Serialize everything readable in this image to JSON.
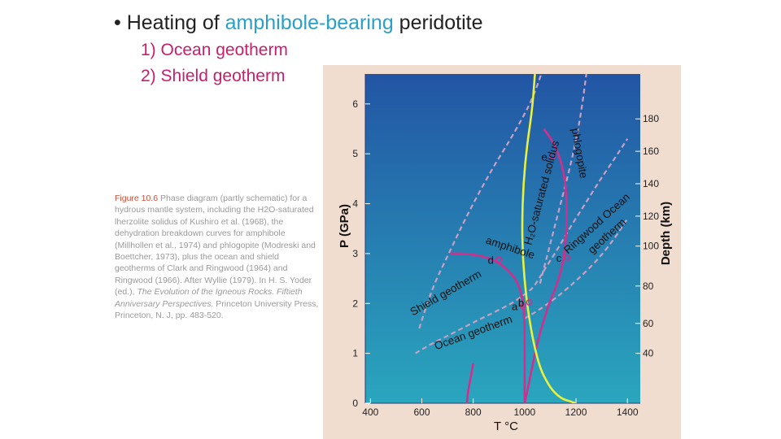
{
  "slide": {
    "bullet": "•",
    "title_pre": "Heating of ",
    "title_highlight": "amphibole-bearing",
    "title_post": " peridotite",
    "item1": "1) Ocean geotherm",
    "item2": "2) Shield geotherm"
  },
  "caption": {
    "fig_label": "Figure 10.6",
    "part1": " Phase diagram (partly schematic) for a hydrous mantle system, including the H2O-saturated lherzolite solidus of Kushiro et al. (1968), the dehydration breakdown curves for amphibole (Millhollen et al., 1974) and phlogopite (Modreski and Boettcher, 1973), plus the ocean and shield geotherms of Clark and Ringwood (1964) and Ringwood (1966). After Wyllie (1979). In H. S. Yoder (ed.), ",
    "italic": "The Evolution of the Igneous Rocks. Fiftieth Anniversary Perspectives.",
    "part2": " Princeton University Press, Princeton, N. J, pp. 483-520."
  },
  "colors": {
    "panel_bg": "#f1ddd0",
    "plot_top": "#2255a4",
    "plot_bottom": "#2aa6be",
    "solidus": "#e8f040",
    "dehydration": "#d0308c",
    "geotherm": "#c8a0c4",
    "point": "#d0308c"
  },
  "chart_data": {
    "type": "line",
    "xlabel": "T °C",
    "ylabel": "P (GPa)",
    "y2label": "Depth (km)",
    "xlim": [
      380,
      1450
    ],
    "ylim": [
      0,
      6.6
    ],
    "x_ticks": [
      400,
      600,
      800,
      1000,
      1200,
      1400
    ],
    "y_ticks": [
      0,
      1,
      2,
      3,
      4,
      5,
      6
    ],
    "depth_ticks": [
      {
        "label": "40",
        "p": 1.0
      },
      {
        "label": "60",
        "p": 1.6
      },
      {
        "label": "80",
        "p": 2.35
      },
      {
        "label": "100",
        "p": 3.15
      },
      {
        "label": "120",
        "p": 3.75
      },
      {
        "label": "140",
        "p": 4.4
      },
      {
        "label": "160",
        "p": 5.05
      },
      {
        "label": "180",
        "p": 5.7
      }
    ],
    "series": [
      {
        "name": "H2O-saturated solidus",
        "style": "solidus",
        "x": [
          1040,
          1030,
          1010,
          995,
          990,
          993,
          1005,
          1015,
          1035,
          1060,
          1090,
          1110,
          1130,
          1150,
          1175,
          1200
        ],
        "y": [
          6.6,
          5.9,
          5.2,
          4.4,
          3.6,
          2.9,
          2.2,
          1.8,
          1.2,
          0.7,
          0.4,
          0.25,
          0.15,
          0.08,
          0.04,
          0.0
        ]
      },
      {
        "name": "phlogopite",
        "style": "dehydration",
        "x": [
          1075,
          1110,
          1140,
          1160,
          1165,
          1160,
          1145,
          1120,
          1095,
          1080,
          1065,
          1052,
          1040,
          1025,
          1000
        ],
        "y": [
          5.5,
          5.25,
          4.9,
          4.4,
          3.8,
          3.2,
          2.7,
          2.3,
          2.0,
          1.75,
          1.5,
          1.25,
          1.0,
          0.6,
          0.0
        ]
      },
      {
        "name": "amphibole",
        "style": "dehydration",
        "x": [
          710,
          780,
          860,
          920,
          965,
          985,
          995,
          998,
          1000,
          1000,
          1000,
          1000
        ],
        "y": [
          3.0,
          3.0,
          2.92,
          2.75,
          2.5,
          2.25,
          2.0,
          1.75,
          1.5,
          1.0,
          0.5,
          0.0
        ]
      },
      {
        "name": "amphibole lower branch",
        "style": "dehydration",
        "x": [
          800,
          790,
          780,
          775
        ],
        "y": [
          0.8,
          0.5,
          0.25,
          0.0
        ]
      },
      {
        "name": "Shield geotherm",
        "style": "geotherm",
        "x": [
          590,
          640,
          700,
          760,
          820,
          880,
          940,
          990,
          1030,
          1065
        ],
        "y": [
          1.5,
          2.3,
          2.95,
          3.6,
          4.2,
          4.75,
          5.25,
          5.7,
          6.1,
          6.6
        ]
      },
      {
        "name": "Ocean geotherm",
        "style": "geotherm",
        "x": [
          575,
          640,
          720,
          800,
          880,
          950,
          1005,
          1035,
          1080,
          1130,
          1180,
          1230,
          1290,
          1350,
          1400
        ],
        "y": [
          1.0,
          1.2,
          1.4,
          1.62,
          1.82,
          2.0,
          2.2,
          2.32,
          2.7,
          3.1,
          3.55,
          3.95,
          4.45,
          4.9,
          5.3
        ]
      },
      {
        "name": "Ocean geotherm upper",
        "style": "geotherm",
        "x": [
          1000,
          1050,
          1120,
          1200,
          1280,
          1350,
          1400
        ],
        "y": [
          1.7,
          1.85,
          2.1,
          2.45,
          2.85,
          3.3,
          3.7
        ]
      },
      {
        "name": "Ringwood Ocean geotherm",
        "style": "geotherm",
        "x": [
          1060,
          1090,
          1120,
          1150,
          1180,
          1205,
          1225,
          1240
        ],
        "y": [
          2.4,
          3.0,
          3.6,
          4.2,
          4.8,
          5.4,
          6.0,
          6.6
        ]
      }
    ],
    "points": [
      {
        "label": "a",
        "x": 993,
        "y": 1.95
      },
      {
        "label": "b",
        "x": 1018,
        "y": 2.02
      },
      {
        "label": "c",
        "x": 1165,
        "y": 2.92
      },
      {
        "label": "d",
        "x": 900,
        "y": 2.88
      },
      {
        "label": "e",
        "x": 1108,
        "y": 4.95
      }
    ],
    "annotations": [
      {
        "text": "H₂O-saturated solidus",
        "x": 1080,
        "y": 4.2,
        "rotate": -75
      },
      {
        "text": "phlogopite",
        "x": 1200,
        "y": 5.0,
        "rotate": 80
      },
      {
        "text": "amphibole",
        "x": 940,
        "y": 3.05,
        "rotate": 18
      },
      {
        "text": "Shield geotherm",
        "x": 700,
        "y": 2.15,
        "rotate": -30
      },
      {
        "text": "Ocean geotherm",
        "x": 805,
        "y": 1.35,
        "rotate": -20
      },
      {
        "text": "Ringwood Ocean",
        "x": 1290,
        "y": 3.55,
        "rotate": -42
      },
      {
        "text": "geotherm",
        "x": 1330,
        "y": 3.3,
        "rotate": -42
      }
    ]
  }
}
